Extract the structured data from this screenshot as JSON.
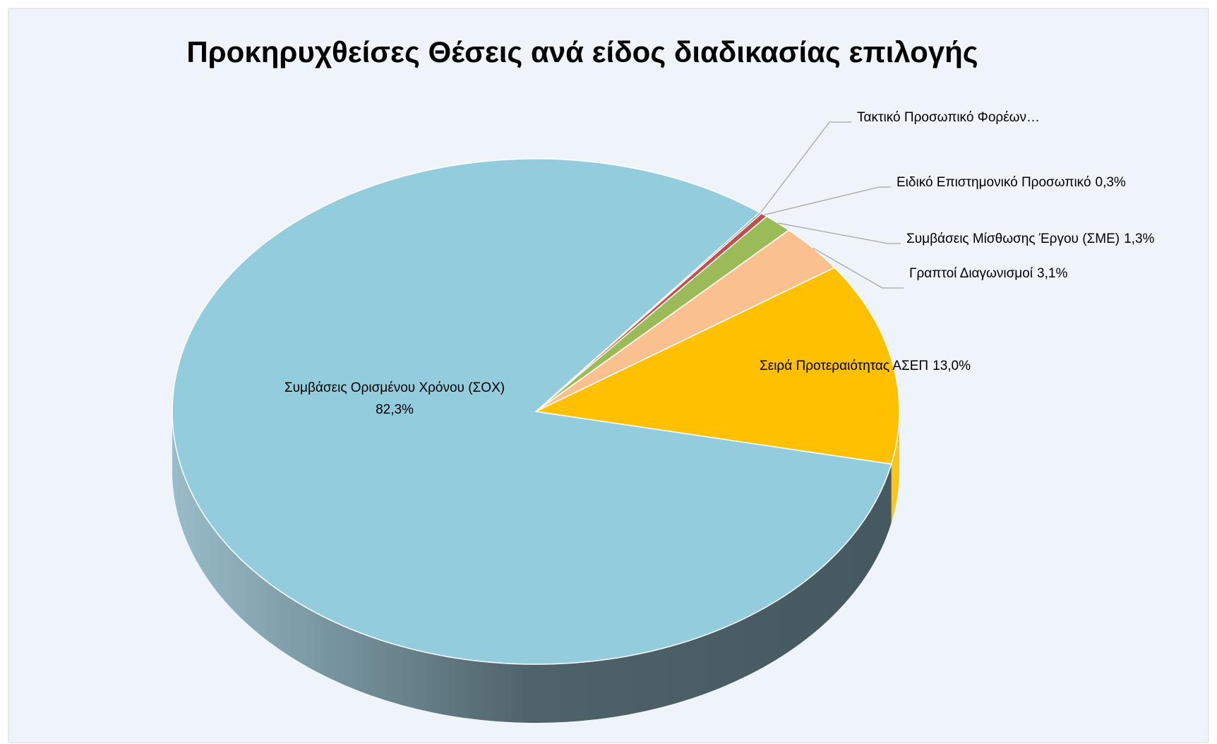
{
  "chart_data": {
    "type": "pie3d",
    "title": "Προκηρυχθείσες Θέσεις ανά είδος διαδικασίας επιλογής",
    "categories": [
      "Τακτικό Προσωπικό Φορέων…",
      "Ειδικό Επιστημονικό Προσωπικό",
      "Συμβάσεις Μίσθωσης Έργου (ΣΜΕ)",
      "Γραπτοί Διαγωνισμοί",
      "Σειρά Προτεραιότητας ΑΣΕΠ",
      "Συμβάσεις Ορισμένου Χρόνου (ΣΟΧ)"
    ],
    "values": [
      0.1,
      0.3,
      1.3,
      3.1,
      13.0,
      82.3
    ],
    "value_labels": [
      null,
      "0,3%",
      "1,3%",
      "3,1%",
      "13,0%",
      "82,3%"
    ],
    "colors": [
      "#4f81bd",
      "#c0504d",
      "#9bbb59",
      "#fac090",
      "#ffc000",
      "#93cddd"
    ]
  }
}
